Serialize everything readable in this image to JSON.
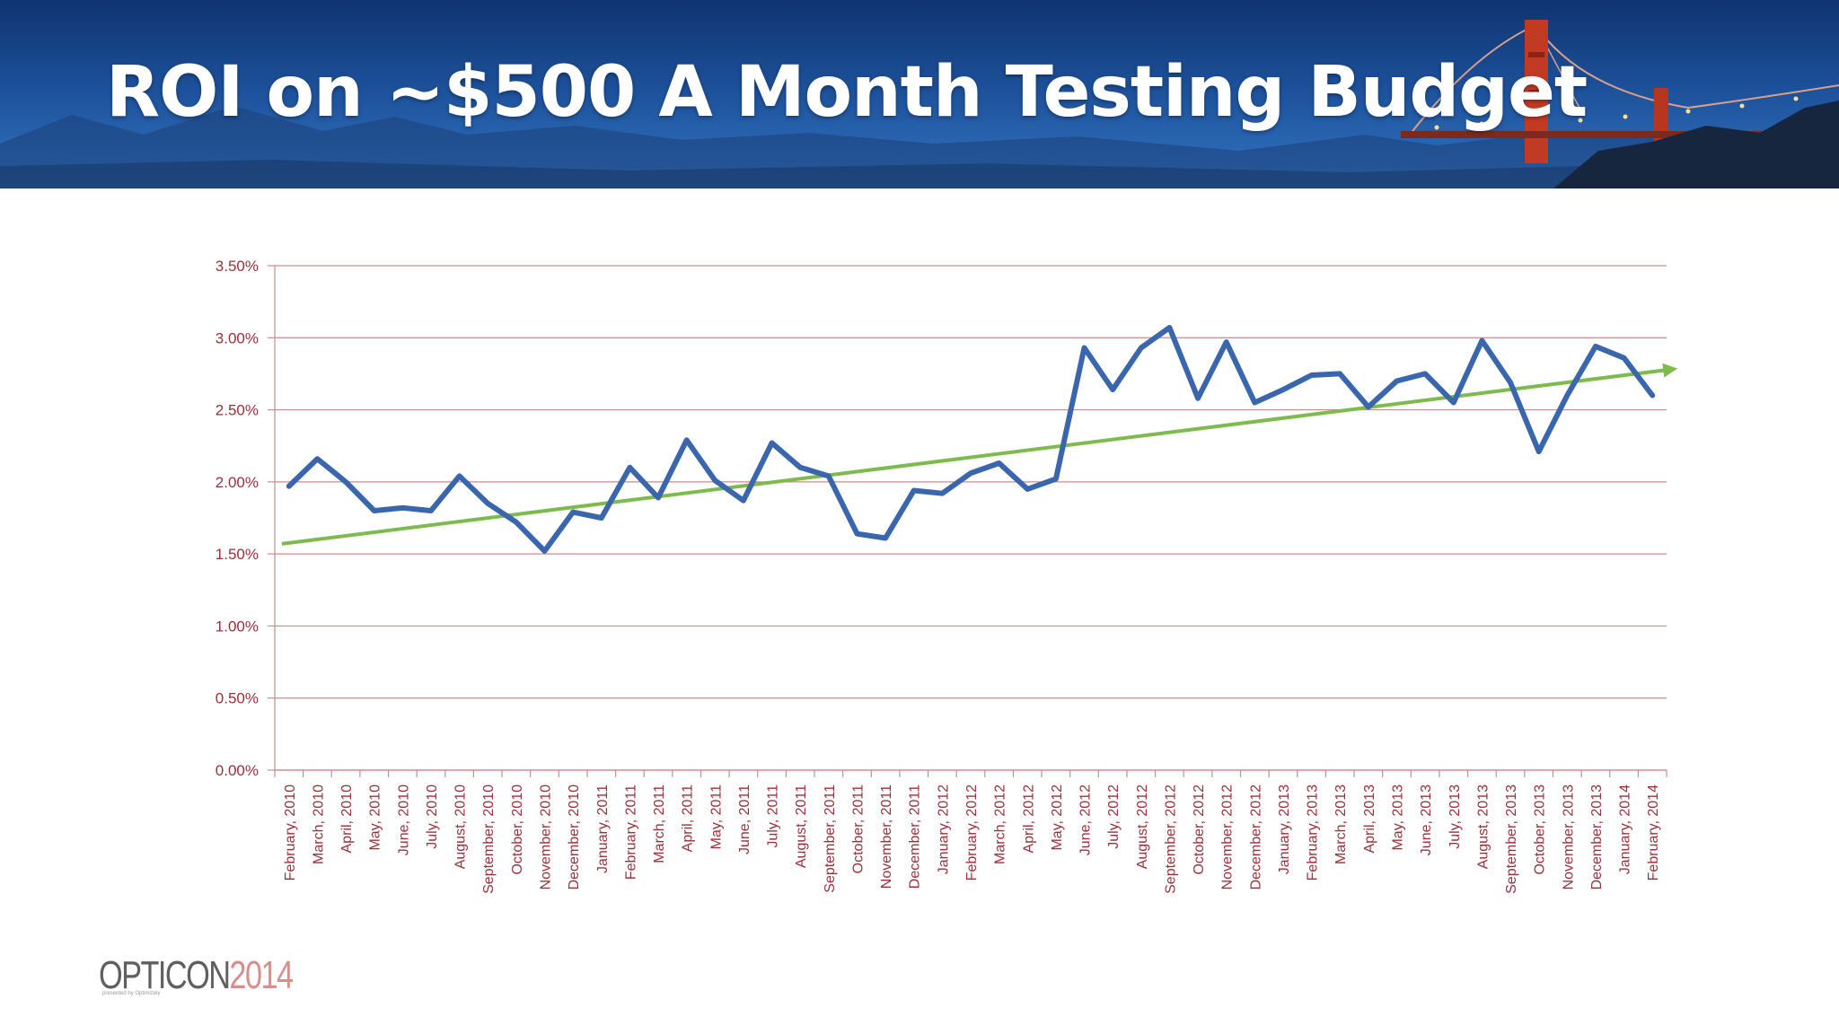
{
  "slide": {
    "title": "ROI on ~$500 A Month Testing Budget"
  },
  "logo": {
    "part1": "OPTICON",
    "part2": "2014",
    "subtitle": "presented by Optimizely"
  },
  "colors": {
    "series_line": "#3a66ad",
    "trend_line": "#7dbb4e",
    "gridline": "#c98c8e",
    "tick_text": "#9c2f3a"
  },
  "chart_data": {
    "type": "line",
    "title": "",
    "xlabel": "",
    "ylabel": "",
    "ylim": [
      0,
      0.035
    ],
    "y_ticks": [
      0,
      0.005,
      0.01,
      0.015,
      0.02,
      0.025,
      0.03,
      0.035
    ],
    "y_tick_labels": [
      "0.00%",
      "0.50%",
      "1.00%",
      "1.50%",
      "2.00%",
      "2.50%",
      "3.00%",
      "3.50%"
    ],
    "grid": true,
    "legend": "none",
    "categories": [
      "February, 2010",
      "March, 2010",
      "April, 2010",
      "May, 2010",
      "June, 2010",
      "July, 2010",
      "August, 2010",
      "September, 2010",
      "October, 2010",
      "November, 2010",
      "December, 2010",
      "January, 2011",
      "February, 2011",
      "March, 2011",
      "April, 2011",
      "May, 2011",
      "June, 2011",
      "July, 2011",
      "August, 2011",
      "September, 2011",
      "October, 2011",
      "November, 2011",
      "December, 2011",
      "January, 2012",
      "February, 2012",
      "March, 2012",
      "April, 2012",
      "May, 2012",
      "June, 2012",
      "July, 2012",
      "August, 2012",
      "September, 2012",
      "October, 2012",
      "November, 2012",
      "December, 2012",
      "January, 2013",
      "February, 2013",
      "March, 2013",
      "April, 2013",
      "May, 2013",
      "June, 2013",
      "July, 2013",
      "August, 2013",
      "September, 2013",
      "October, 2013",
      "November, 2013",
      "December, 2013",
      "January, 2014",
      "February, 2014"
    ],
    "series": [
      {
        "values": [
          0.0197,
          0.0216,
          0.02,
          0.018,
          0.0182,
          0.018,
          0.0204,
          0.0185,
          0.0172,
          0.0152,
          0.0179,
          0.0175,
          0.021,
          0.0189,
          0.0229,
          0.0201,
          0.0187,
          0.0227,
          0.021,
          0.0204,
          0.0164,
          0.0161,
          0.0194,
          0.0192,
          0.0206,
          0.0213,
          0.0195,
          0.0202,
          0.0293,
          0.0264,
          0.0293,
          0.0307,
          0.0258,
          0.0297,
          0.0255,
          0.0264,
          0.0274,
          0.0275,
          0.0252,
          0.027,
          0.0275,
          0.0255,
          0.0298,
          0.0269,
          0.0221,
          0.026,
          0.0294,
          0.0286,
          0.026
        ]
      }
    ],
    "trendline": {
      "type": "linear",
      "from": 0.0157,
      "to": 0.0278
    }
  }
}
